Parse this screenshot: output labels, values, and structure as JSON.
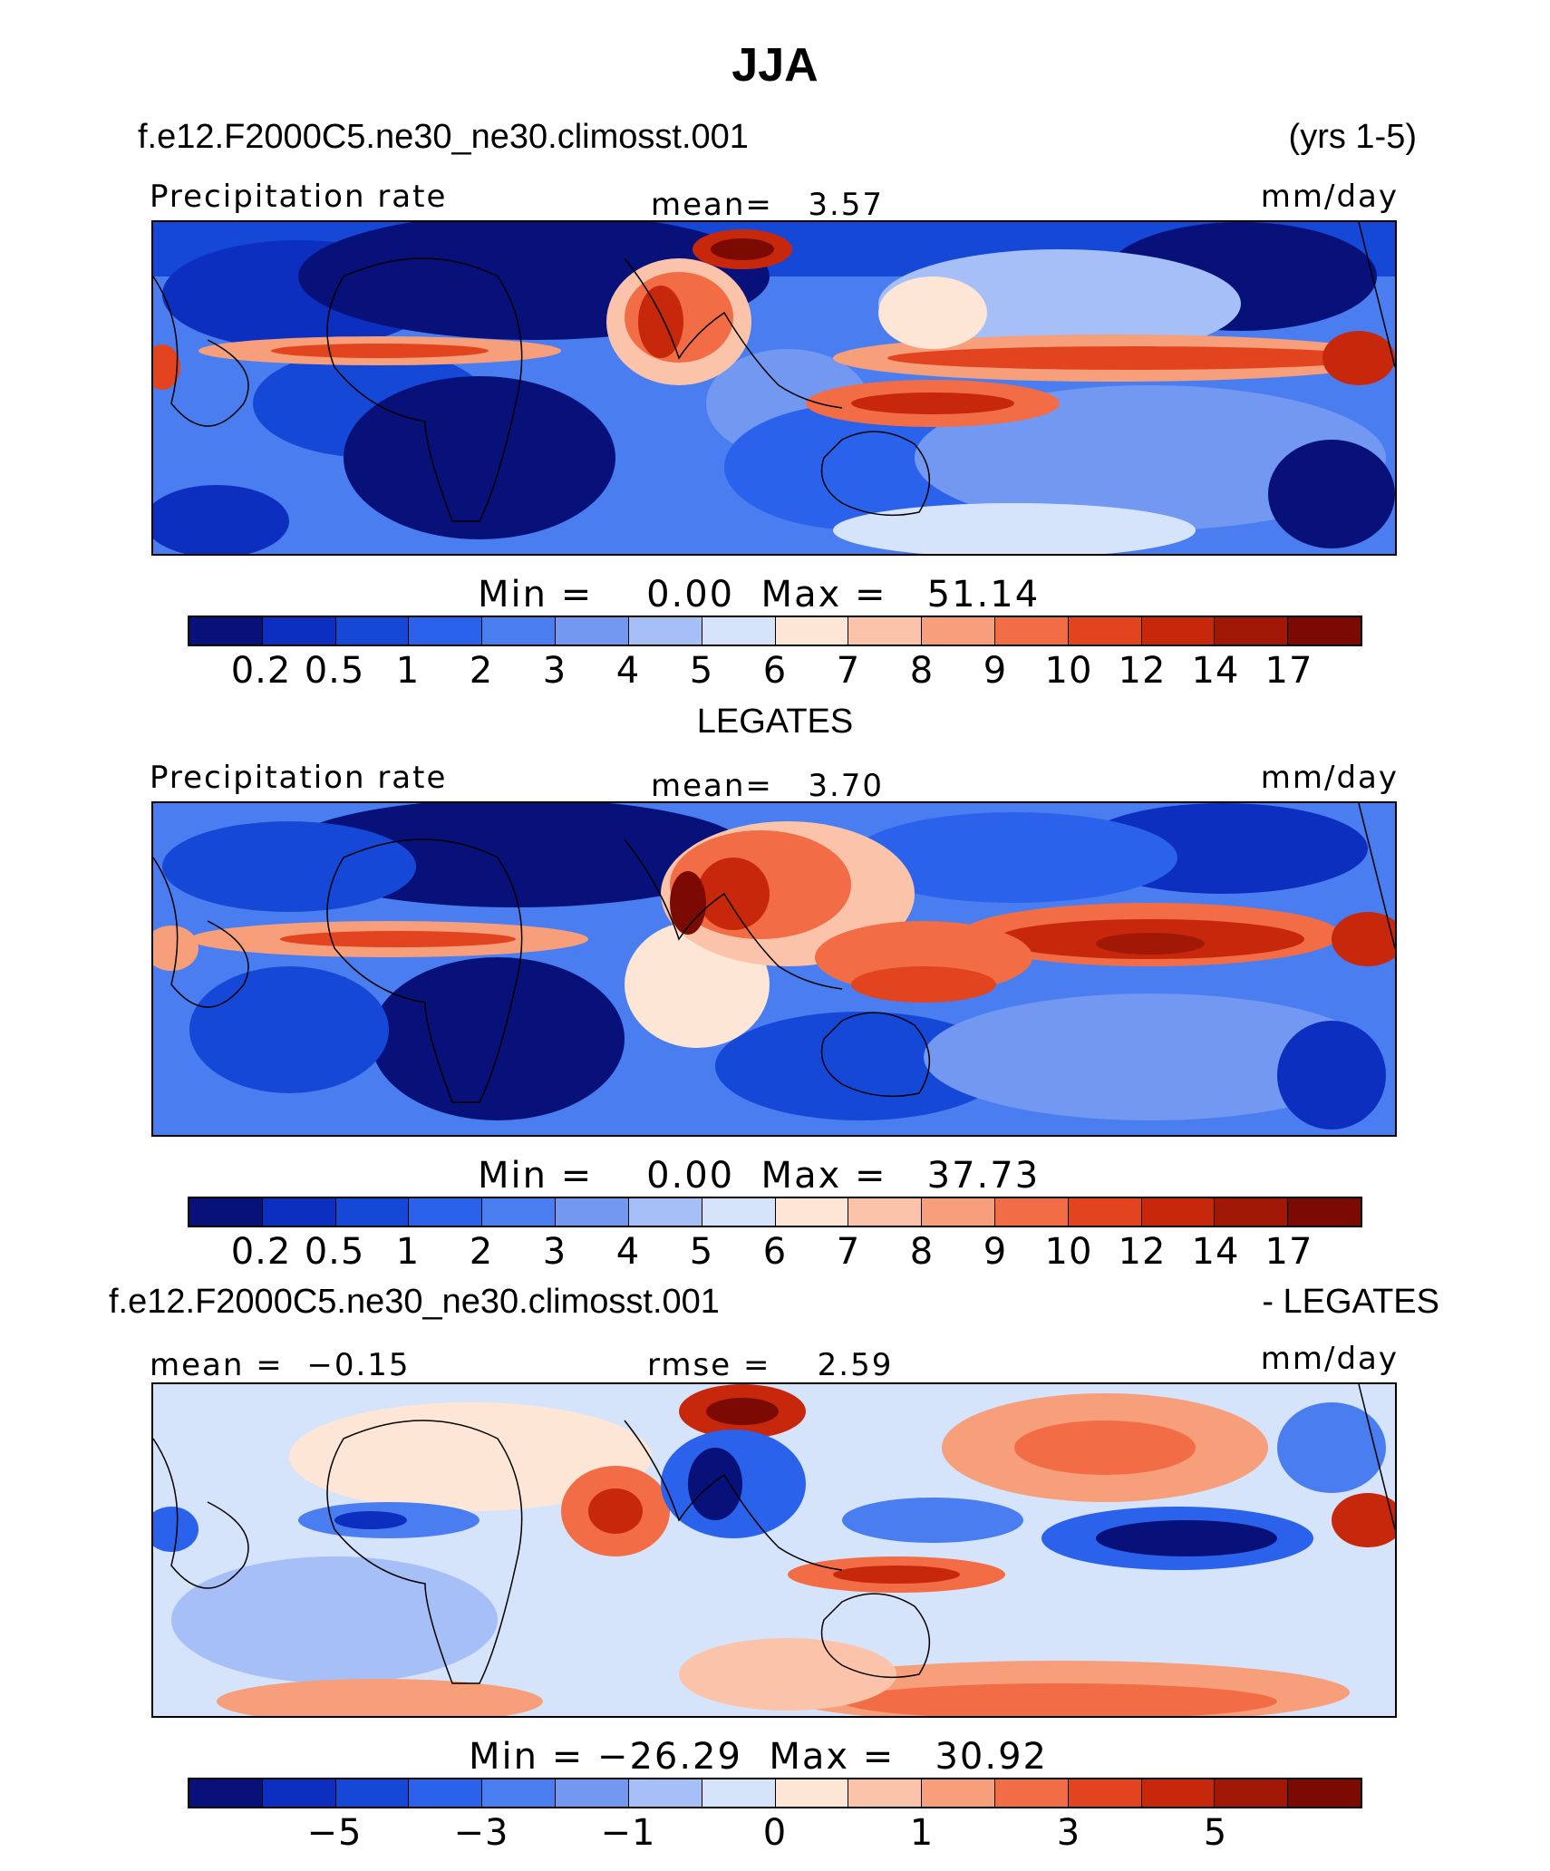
{
  "title": "JJA",
  "panel1": {
    "case": "f.e12.F2000C5.ne30_ne30.climosst.001",
    "years": "(yrs 1-5)",
    "variable": "Precipitation rate",
    "mean_label": "mean=   3.57",
    "units": "mm/day",
    "minmax": "Min =    0.00  Max =   51.14"
  },
  "panel2": {
    "obs_title": "LEGATES",
    "variable": "Precipitation rate",
    "mean_label": "mean=   3.70",
    "units": "mm/day",
    "minmax": "Min =    0.00  Max =   37.73"
  },
  "panel3": {
    "diff_left": "f.e12.F2000C5.ne30_ne30.climosst.001",
    "diff_right": "- LEGATES",
    "mean_label": "mean =  −0.15",
    "rmse_label": "rmse =    2.59",
    "units": "mm/day",
    "minmax": "Min = −26.29  Max =   30.92"
  },
  "colorbar": {
    "colors": [
      "#08107a",
      "#0c2fbf",
      "#1648d8",
      "#2a62ec",
      "#4a7ef0",
      "#7398f2",
      "#a6bff7",
      "#d6e4fb",
      "#fde6d6",
      "#fbc4aa",
      "#f79e7a",
      "#f26d45",
      "#e34420",
      "#c7280c",
      "#a11806",
      "#7a0a02"
    ],
    "prec_ticks": [
      "0.2",
      "0.5",
      "1",
      "2",
      "3",
      "4",
      "5",
      "6",
      "7",
      "8",
      "9",
      "10",
      "12",
      "14",
      "17"
    ],
    "diff_ticks": [
      "−5",
      "−3",
      "−1",
      "0",
      "1",
      "3",
      "5"
    ]
  }
}
